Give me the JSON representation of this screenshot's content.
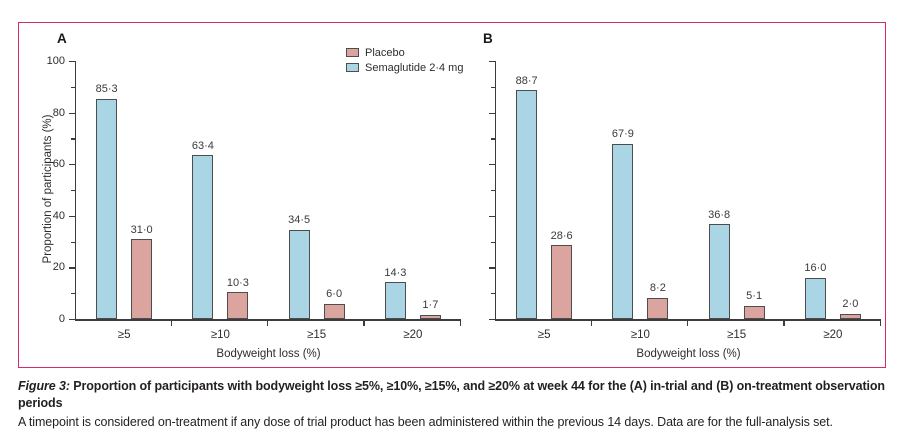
{
  "figure": {
    "caption_label": "Figure 3:",
    "caption_bold": "Proportion of participants with bodyweight loss ≥5%, ≥10%, ≥15%, and ≥20% at week 44 for the (A) in-trial and (B) on-treatment observation periods",
    "caption_note": "A timepoint is considered on-treatment if any dose of trial product has been administered within the previous 14 days. Data are for the full-analysis set."
  },
  "colors": {
    "border_pink": "#d42a6b",
    "placebo_fill": "#dca49e",
    "semaglutide_fill": "#a9d5e5",
    "bar_stroke": "#4d4d4d",
    "axis": "#3c3c3c"
  },
  "legend": {
    "items": [
      {
        "label": "Placebo",
        "color": "#dca49e"
      },
      {
        "label": "Semaglutide 2·4 mg",
        "color": "#a9d5e5"
      }
    ]
  },
  "chart_data": [
    {
      "type": "bar",
      "panel": "A",
      "categories": [
        "≥5",
        "≥10",
        "≥15",
        "≥20"
      ],
      "series": [
        {
          "name": "Semaglutide 2·4 mg",
          "values": [
            85.3,
            63.4,
            34.5,
            14.3
          ],
          "display": [
            "85·3",
            "63·4",
            "34·5",
            "14·3"
          ],
          "color": "#a9d5e5"
        },
        {
          "name": "Placebo",
          "values": [
            31.0,
            10.3,
            6.0,
            1.7
          ],
          "display": [
            "31·0",
            "10·3",
            "6·0",
            "1·7"
          ],
          "color": "#dca49e"
        }
      ],
      "xlabel": "Bodyweight loss (%)",
      "ylabel": "Proportion of participants (%)",
      "ylim": [
        0,
        100
      ],
      "yticks": [
        0,
        20,
        40,
        60,
        80,
        100
      ],
      "ytick_labels": [
        "0",
        "20",
        "40",
        "60",
        "80",
        "100"
      ],
      "minor_ticks": [
        10,
        30,
        50,
        70,
        90
      ],
      "grid": false,
      "legend_position": "top-right-of-panel"
    },
    {
      "type": "bar",
      "panel": "B",
      "categories": [
        "≥5",
        "≥10",
        "≥15",
        "≥20"
      ],
      "series": [
        {
          "name": "Semaglutide 2·4 mg",
          "values": [
            88.7,
            67.9,
            36.8,
            16.0
          ],
          "display": [
            "88·7",
            "67·9",
            "36·8",
            "16·0"
          ],
          "color": "#a9d5e5"
        },
        {
          "name": "Placebo",
          "values": [
            28.6,
            8.2,
            5.1,
            2.0
          ],
          "display": [
            "28·6",
            "8·2",
            "5·1",
            "2·0"
          ],
          "color": "#dca49e"
        }
      ],
      "xlabel": "Bodyweight loss (%)",
      "ylabel": "",
      "ylim": [
        0,
        100
      ],
      "yticks": [
        0,
        20,
        40,
        60,
        80,
        100
      ],
      "ytick_labels": [],
      "minor_ticks": [
        10,
        30,
        50,
        70,
        90
      ],
      "grid": false
    }
  ]
}
